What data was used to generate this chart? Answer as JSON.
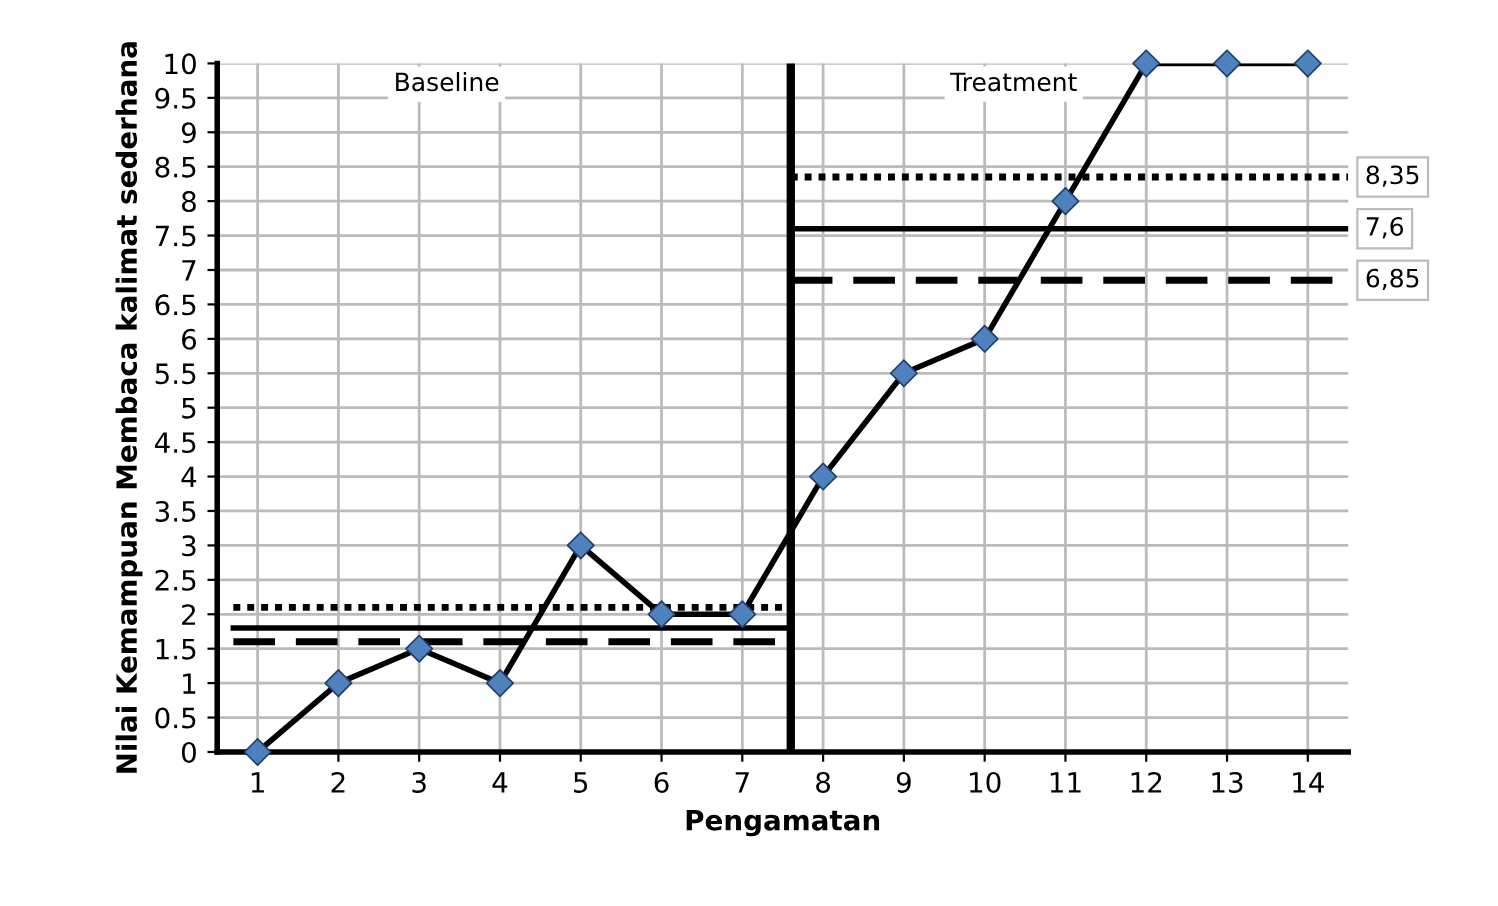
{
  "chart_data": {
    "type": "line",
    "xlabel": "Pengamatan",
    "ylabel": "Nilai Kemampuan Membaca kalimat sederhana",
    "x": [
      1,
      2,
      3,
      4,
      5,
      6,
      7,
      8,
      9,
      10,
      11,
      12,
      13,
      14
    ],
    "xlim": [
      0.5,
      14.5
    ],
    "xticks": [
      1,
      2,
      3,
      4,
      5,
      6,
      7,
      8,
      9,
      10,
      11,
      12,
      13,
      14
    ],
    "ylim": [
      0,
      10
    ],
    "yticks": [
      0,
      0.5,
      1,
      1.5,
      2,
      2.5,
      3,
      3.5,
      4,
      4.5,
      5,
      5.5,
      6,
      6.5,
      7,
      7.5,
      8,
      8.5,
      9,
      9.5,
      10
    ],
    "grid": true,
    "series": [
      {
        "color": "#000000",
        "marker": "diamond",
        "colors": [
          "#4f81bd",
          "#4f81bd",
          "#4f81bd",
          "#4f81bd",
          "#4f81bd",
          "#4f81bd",
          "#4f81bd",
          "#4f81bd",
          "#4f81bd",
          "#4f81bd",
          "#4f81bd",
          "#4f81bd",
          "#4f81bd",
          "#4f81bd"
        ],
        "line_style": "solid",
        "values": [
          0,
          1,
          1.5,
          1,
          3,
          2,
          2,
          4,
          5.5,
          6,
          8,
          10,
          10,
          10
        ]
      },
      {
        "color": "#000000",
        "marker": "none",
        "line_style": "dotted",
        "x": [
          0.7,
          7.6
        ],
        "values": [
          2.1,
          2.1
        ]
      },
      {
        "color": "#000000",
        "marker": "none",
        "line_style": "solid",
        "x": [
          0.7,
          7.6
        ],
        "values": [
          1.8,
          1.8
        ]
      },
      {
        "color": "#000000",
        "marker": "none",
        "line_style": "dashed",
        "x": [
          0.7,
          7.6
        ],
        "values": [
          1.6,
          1.6
        ]
      },
      {
        "name": "8,35",
        "color": "#000000",
        "marker": "none",
        "line_style": "dotted",
        "x": [
          7.6,
          14.5
        ],
        "values": [
          8.35,
          8.35
        ]
      },
      {
        "name": "7,6",
        "color": "#000000",
        "marker": "none",
        "line_style": "solid",
        "x": [
          7.6,
          14.5
        ],
        "values": [
          7.6,
          7.6
        ]
      },
      {
        "name": "6,85",
        "color": "#000000",
        "marker": "none",
        "line_style": "dashed",
        "x": [
          7.6,
          14.5
        ],
        "values": [
          6.85,
          6.85
        ]
      }
    ],
    "ref_lines": [
      {
        "axis": "x",
        "value": 7.6,
        "color": "#000000",
        "line_style": "solid"
      }
    ],
    "annotations": [
      "Baseline",
      "Treatment"
    ]
  }
}
